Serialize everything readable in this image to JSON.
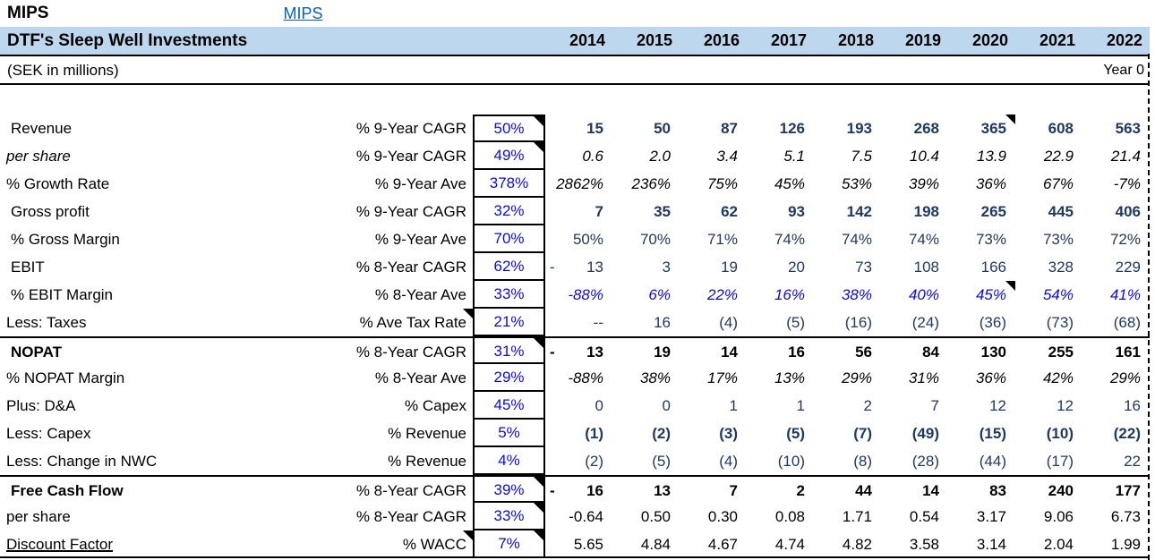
{
  "window": {
    "app_label": "MIPS",
    "link_label": "MIPS"
  },
  "header": {
    "title": "DTF's Sleep Well Investments",
    "subtitle": "(SEK in millions)",
    "year_zero_label": "Year 0",
    "years": [
      "2014",
      "2015",
      "2016",
      "2017",
      "2018",
      "2019",
      "2020",
      "2021",
      "2022"
    ]
  },
  "colors": {
    "band_blue": "#BDD7EE",
    "value_navy": "#1F3864",
    "input_blue": "#0A0AEE",
    "link_blue": "#0563C1",
    "text_black": "#000000"
  },
  "table": {
    "rows": [
      {
        "label": "Revenue",
        "label_style": "normal",
        "indent": true,
        "metric": "% 9-Year CAGR",
        "pct": "50%",
        "pct_note": true,
        "metric_note": false,
        "style": "navy-bold",
        "lead_dash": false,
        "note_col": 6,
        "sep_above": false,
        "values": [
          "15",
          "50",
          "87",
          "126",
          "193",
          "268",
          "365",
          "608",
          "563"
        ]
      },
      {
        "label": "per share",
        "label_style": "italic",
        "indent": false,
        "metric": "% 9-Year CAGR",
        "pct": "49%",
        "pct_note": true,
        "metric_note": false,
        "style": "black-italic",
        "lead_dash": false,
        "note_col": null,
        "sep_above": false,
        "values": [
          "0.6",
          "2.0",
          "3.4",
          "5.1",
          "7.5",
          "10.4",
          "13.9",
          "22.9",
          "21.4"
        ]
      },
      {
        "label": "% Growth Rate",
        "label_style": "normal",
        "indent": false,
        "metric": "% 9-Year Ave",
        "pct": "378%",
        "pct_note": false,
        "metric_note": false,
        "style": "black-italic",
        "lead_dash": false,
        "note_col": null,
        "sep_above": false,
        "values": [
          "2862%",
          "236%",
          "75%",
          "45%",
          "53%",
          "39%",
          "36%",
          "67%",
          "-7%"
        ]
      },
      {
        "label": "Gross profit",
        "label_style": "normal",
        "indent": true,
        "metric": "% 9-Year CAGR",
        "pct": "32%",
        "pct_note": false,
        "metric_note": false,
        "style": "navy-bold",
        "lead_dash": false,
        "note_col": null,
        "sep_above": false,
        "values": [
          "7",
          "35",
          "62",
          "93",
          "142",
          "198",
          "265",
          "445",
          "406"
        ]
      },
      {
        "label": "% Gross Margin",
        "label_style": "normal",
        "indent": true,
        "metric": "% 9-Year Ave",
        "pct": "70%",
        "pct_note": false,
        "metric_note": false,
        "style": "navy",
        "lead_dash": false,
        "note_col": null,
        "sep_above": false,
        "values": [
          "50%",
          "70%",
          "71%",
          "74%",
          "74%",
          "74%",
          "73%",
          "73%",
          "72%"
        ]
      },
      {
        "label": "EBIT",
        "label_style": "normal",
        "indent": true,
        "metric": "% 8-Year CAGR",
        "pct": "62%",
        "pct_note": false,
        "metric_note": false,
        "style": "navy",
        "lead_dash": true,
        "note_col": null,
        "sep_above": false,
        "values": [
          "13",
          "3",
          "19",
          "20",
          "73",
          "108",
          "166",
          "328",
          "229"
        ]
      },
      {
        "label": "% EBIT Margin",
        "label_style": "normal",
        "indent": true,
        "metric": "% 8-Year Ave",
        "pct": "33%",
        "pct_note": false,
        "metric_note": false,
        "style": "blue-italic",
        "lead_dash": false,
        "note_col": 6,
        "sep_above": false,
        "values": [
          "-88%",
          "6%",
          "22%",
          "16%",
          "38%",
          "40%",
          "45%",
          "54%",
          "41%"
        ]
      },
      {
        "label": "Less: Taxes",
        "label_style": "normal",
        "indent": false,
        "metric": "% Ave Tax Rate",
        "pct": "21%",
        "pct_note": false,
        "metric_note": true,
        "style": "navy",
        "lead_dash": false,
        "note_col": null,
        "sep_above": false,
        "values": [
          "--",
          "16",
          "(4)",
          "(5)",
          "(16)",
          "(24)",
          "(36)",
          "(73)",
          "(68)"
        ]
      },
      {
        "label": "NOPAT",
        "label_style": "bold",
        "indent": true,
        "metric": "% 8-Year CAGR",
        "pct": "31%",
        "pct_note": true,
        "metric_note": false,
        "style": "black-bold",
        "lead_dash": true,
        "note_col": null,
        "sep_above": true,
        "values": [
          "13",
          "19",
          "14",
          "16",
          "56",
          "84",
          "130",
          "255",
          "161"
        ]
      },
      {
        "label": "% NOPAT Margin",
        "label_style": "normal",
        "indent": false,
        "metric": "% 8-Year Ave",
        "pct": "29%",
        "pct_note": false,
        "metric_note": false,
        "style": "black-italic",
        "lead_dash": false,
        "note_col": null,
        "sep_above": false,
        "values": [
          "-88%",
          "38%",
          "17%",
          "13%",
          "29%",
          "31%",
          "36%",
          "42%",
          "29%"
        ]
      },
      {
        "label": "Plus: D&A",
        "label_style": "normal",
        "indent": false,
        "metric": "% Capex",
        "pct": "45%",
        "pct_note": false,
        "metric_note": false,
        "style": "navy",
        "lead_dash": false,
        "note_col": null,
        "sep_above": false,
        "values": [
          "0",
          "0",
          "1",
          "1",
          "2",
          "7",
          "12",
          "12",
          "16"
        ]
      },
      {
        "label": "Less: Capex",
        "label_style": "normal",
        "indent": false,
        "metric": "% Revenue",
        "pct": "5%",
        "pct_note": false,
        "metric_note": false,
        "style": "navy-bold",
        "lead_dash": false,
        "note_col": null,
        "sep_above": false,
        "values": [
          "(1)",
          "(2)",
          "(3)",
          "(5)",
          "(7)",
          "(49)",
          "(15)",
          "(10)",
          "(22)"
        ]
      },
      {
        "label": "Less: Change in NWC",
        "label_style": "normal",
        "indent": false,
        "metric": "% Revenue",
        "pct": "4%",
        "pct_note": false,
        "metric_note": false,
        "style": "navy",
        "lead_dash": false,
        "note_col": null,
        "sep_above": false,
        "values": [
          "(2)",
          "(5)",
          "(4)",
          "(10)",
          "(8)",
          "(28)",
          "(44)",
          "(17)",
          "22"
        ]
      },
      {
        "label": "Free Cash Flow",
        "label_style": "bold",
        "indent": true,
        "metric": "% 8-Year CAGR",
        "pct": "39%",
        "pct_note": true,
        "metric_note": false,
        "style": "black-bold",
        "lead_dash": true,
        "note_col": null,
        "sep_above": true,
        "values": [
          "16",
          "13",
          "7",
          "2",
          "44",
          "14",
          "83",
          "240",
          "177"
        ]
      },
      {
        "label": "per share",
        "label_style": "normal",
        "indent": false,
        "metric": "% 8-Year CAGR",
        "pct": "33%",
        "pct_note": true,
        "metric_note": false,
        "style": "black",
        "lead_dash": false,
        "note_col": null,
        "sep_above": false,
        "values": [
          "-0.64",
          "0.50",
          "0.30",
          "0.08",
          "1.71",
          "0.54",
          "3.17",
          "9.06",
          "6.73"
        ]
      },
      {
        "label": "Discount Factor",
        "label_style": "underline",
        "indent": false,
        "metric": "% WACC",
        "pct": "7%",
        "pct_note": true,
        "metric_note": true,
        "style": "black",
        "lead_dash": false,
        "note_col": null,
        "sep_above": false,
        "values": [
          "5.65",
          "4.84",
          "4.67",
          "4.74",
          "4.82",
          "3.58",
          "3.14",
          "2.04",
          "1.99"
        ]
      }
    ]
  }
}
